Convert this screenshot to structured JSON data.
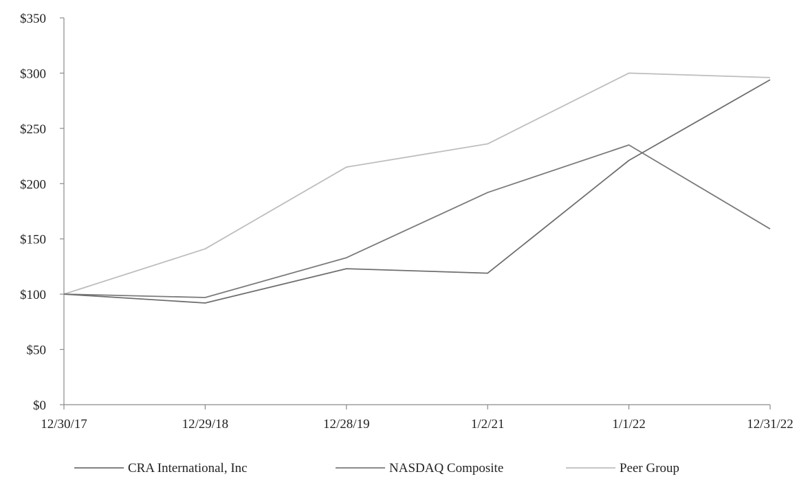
{
  "chart_data": {
    "type": "line",
    "title": "",
    "xlabel": "",
    "ylabel": "",
    "x": [
      "12/30/17",
      "12/29/18",
      "12/28/19",
      "1/2/21",
      "1/1/22",
      "12/31/22"
    ],
    "ylim": [
      0,
      350
    ],
    "yticks": [
      0,
      50,
      100,
      150,
      200,
      250,
      300,
      350
    ],
    "ytick_labels": [
      "$0",
      "$50",
      "$100",
      "$150",
      "$200",
      "$250",
      "$300",
      "$350"
    ],
    "grid": false,
    "legend_position": "bottom",
    "series": [
      {
        "name": "CRA International, Inc",
        "values": [
          100,
          92,
          123,
          119,
          221,
          294
        ],
        "color": "#6e6e6e"
      },
      {
        "name": "NASDAQ Composite",
        "values": [
          100,
          97,
          133,
          192,
          235,
          159
        ],
        "color": "#7a7a7a"
      },
      {
        "name": "Peer Group",
        "values": [
          100,
          141,
          215,
          236,
          300,
          296
        ],
        "color": "#bdbdbd"
      }
    ]
  }
}
